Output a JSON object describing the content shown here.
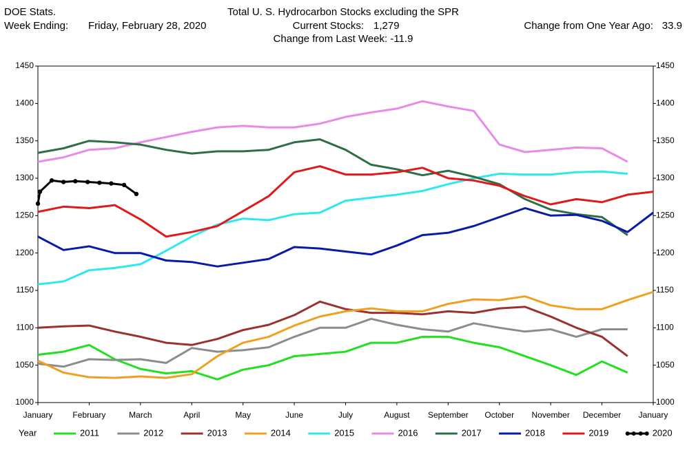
{
  "header": {
    "source": "DOE Stats.",
    "week_label": "Week Ending:",
    "week": "Friday, February 28, 2020",
    "stocks_label": "Current Stocks:",
    "stocks": "1,279",
    "year_change_label": "Change from One Year Ago:",
    "year_change": "33.9",
    "week_change": "Change from Last Week: -11.9"
  },
  "chart_data": {
    "type": "line",
    "title": "Total U. S. Hydrocarbon Stocks excluding the SPR",
    "legend_title": "Year",
    "x": [
      0,
      0.5,
      1,
      1.5,
      2,
      2.5,
      3,
      3.5,
      4,
      4.5,
      5,
      5.5,
      6,
      6.5,
      7,
      7.5,
      8,
      8.5,
      9,
      9.5,
      10,
      10.5,
      11,
      11.5,
      12
    ],
    "xlim": [
      0,
      12
    ],
    "xticks": [
      {
        "value": 0,
        "label": "January"
      },
      {
        "value": 1,
        "label": "February"
      },
      {
        "value": 2,
        "label": "March"
      },
      {
        "value": 3,
        "label": "April"
      },
      {
        "value": 4,
        "label": "May"
      },
      {
        "value": 5,
        "label": "June"
      },
      {
        "value": 6,
        "label": "July"
      },
      {
        "value": 7,
        "label": "August"
      },
      {
        "value": 8,
        "label": "September"
      },
      {
        "value": 9,
        "label": "October"
      },
      {
        "value": 10,
        "label": "November"
      },
      {
        "value": 11,
        "label": "December"
      },
      {
        "value": 12,
        "label": "January"
      }
    ],
    "ylim": [
      1000,
      1450
    ],
    "yticks": [
      1000,
      1050,
      1100,
      1150,
      1200,
      1250,
      1300,
      1350,
      1400,
      1450
    ],
    "right_axis": true,
    "grid": false,
    "series": [
      {
        "name": "2011",
        "color": "#22e01f",
        "values": [
          1064,
          1068,
          1077,
          1058,
          1045,
          1039,
          1042,
          1031,
          1044,
          1050,
          1062,
          1065,
          1068,
          1080,
          1080,
          1088,
          1088,
          1080,
          1074,
          1062,
          1050,
          1037,
          1055,
          1040,
          null
        ]
      },
      {
        "name": "2012",
        "color": "#8c8c8c",
        "values": [
          1052,
          1048,
          1058,
          1057,
          1058,
          1053,
          1073,
          1068,
          1070,
          1074,
          1088,
          1100,
          1100,
          1112,
          1104,
          1098,
          1095,
          1106,
          1100,
          1095,
          1098,
          1088,
          1098,
          1098,
          null
        ]
      },
      {
        "name": "2013",
        "color": "#9c2f2f",
        "values": [
          1100,
          1102,
          1103,
          1095,
          1088,
          1080,
          1077,
          1085,
          1097,
          1104,
          1117,
          1135,
          1125,
          1120,
          1120,
          1118,
          1122,
          1120,
          1126,
          1128,
          1115,
          1100,
          1088,
          1062,
          null
        ]
      },
      {
        "name": "2014",
        "color": "#f0a020",
        "values": [
          1056,
          1040,
          1034,
          1033,
          1035,
          1033,
          1038,
          1062,
          1080,
          1088,
          1103,
          1115,
          1122,
          1126,
          1122,
          1122,
          1132,
          1138,
          1137,
          1142,
          1130,
          1125,
          1125,
          1137,
          1148
        ]
      },
      {
        "name": "2015",
        "color": "#2ee8f0",
        "values": [
          1158,
          1162,
          1177,
          1180,
          1185,
          1203,
          1222,
          1238,
          1246,
          1244,
          1252,
          1254,
          1270,
          1274,
          1278,
          1283,
          1292,
          1300,
          1306,
          1305,
          1305,
          1308,
          1309,
          1306,
          null
        ]
      },
      {
        "name": "2016",
        "color": "#e88ae8",
        "values": [
          1322,
          1328,
          1338,
          1340,
          1348,
          1355,
          1362,
          1368,
          1370,
          1368,
          1368,
          1373,
          1382,
          1388,
          1393,
          1403,
          1396,
          1390,
          1345,
          1335,
          1338,
          1341,
          1340,
          1322,
          null
        ]
      },
      {
        "name": "2017",
        "color": "#2e6e46",
        "values": [
          1334,
          1340,
          1350,
          1348,
          1345,
          1338,
          1333,
          1336,
          1336,
          1338,
          1348,
          1352,
          1338,
          1318,
          1312,
          1304,
          1310,
          1302,
          1292,
          1272,
          1258,
          1252,
          1248,
          1224,
          null
        ]
      },
      {
        "name": "2018",
        "color": "#0a1aa8",
        "values": [
          1222,
          1204,
          1209,
          1200,
          1200,
          1190,
          1188,
          1182,
          1187,
          1192,
          1208,
          1206,
          1202,
          1198,
          1210,
          1224,
          1227,
          1236,
          1248,
          1260,
          1250,
          1251,
          1243,
          1228,
          1254
        ]
      },
      {
        "name": "2019",
        "color": "#e01a1a",
        "values": [
          1255,
          1262,
          1260,
          1264,
          1245,
          1222,
          1228,
          1236,
          1256,
          1276,
          1308,
          1316,
          1305,
          1305,
          1308,
          1314,
          1300,
          1297,
          1290,
          1276,
          1265,
          1272,
          1268,
          1278,
          1282
        ]
      },
      {
        "name": "2020",
        "color": "#000000",
        "marker": true,
        "x": [
          0,
          0.04,
          0.27,
          0.5,
          0.73,
          0.97,
          1.2,
          1.43,
          1.68,
          1.92
        ],
        "values": [
          1266,
          1282,
          1297,
          1295,
          1296,
          1295,
          1294,
          1293,
          1291,
          1279
        ]
      }
    ]
  }
}
